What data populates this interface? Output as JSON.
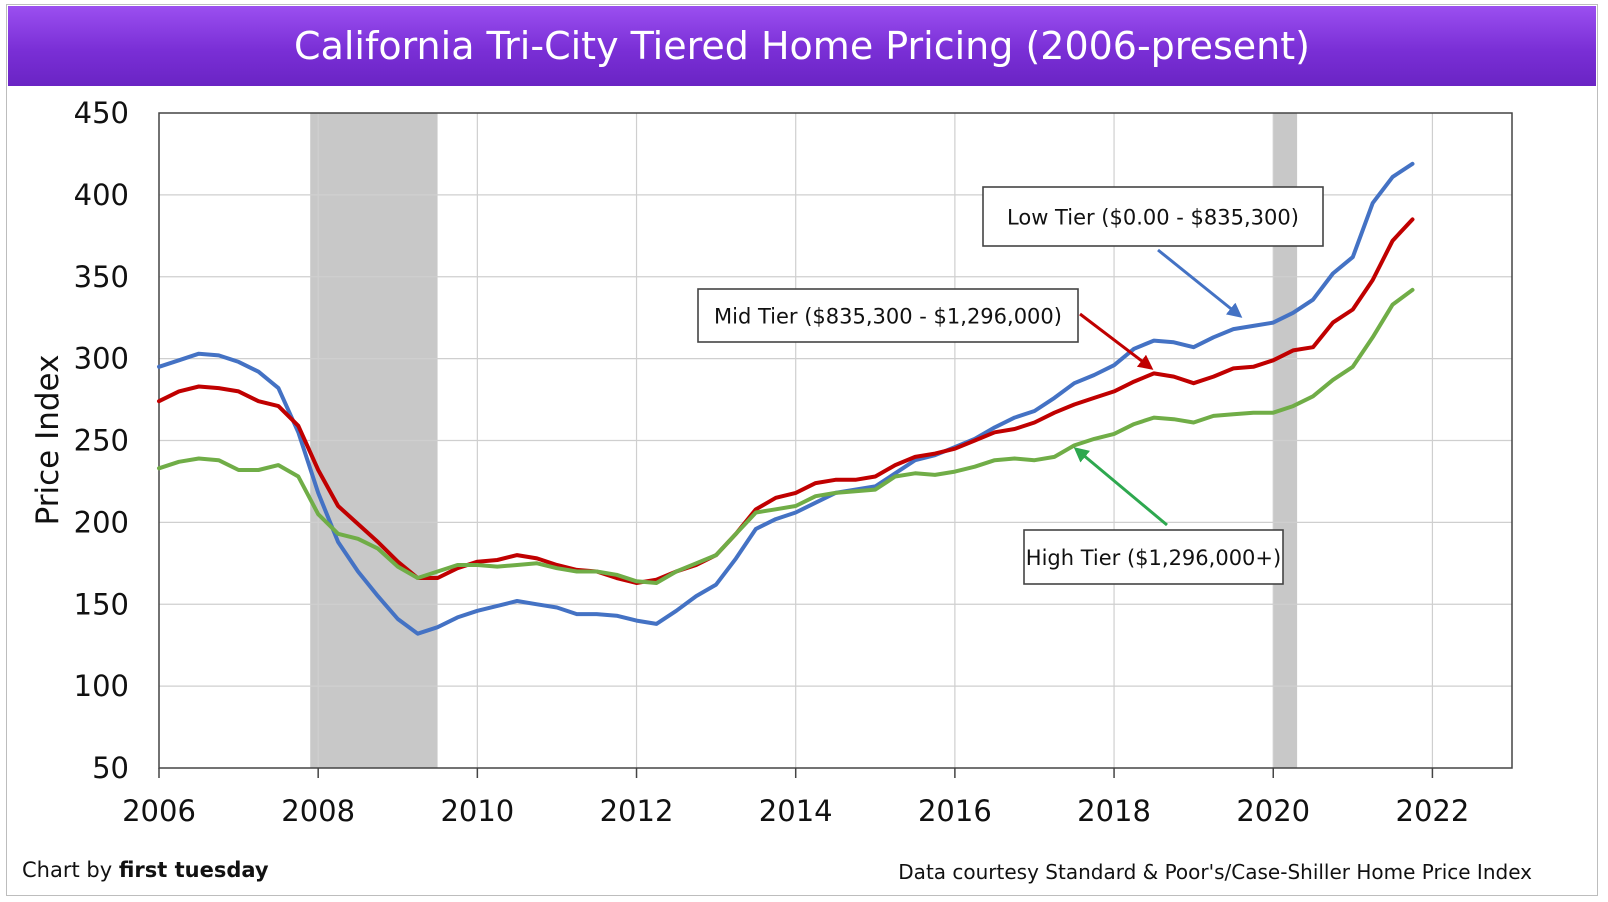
{
  "title": "California Tri-City Tiered Home Pricing (2006-present)",
  "credit_left_prefix": "Chart by ",
  "credit_left_brand": "first tuesday",
  "credit_right": "Data courtesy Standard & Poor's/Case-Shiller Home Price Index",
  "colors": {
    "low": "#4472c4",
    "mid": "#c00000",
    "high": "#70ad47",
    "recession": "#c8c8c8",
    "title_bg": "#7a2fd6",
    "high_arrow": "#2ea84f"
  },
  "chart_data": {
    "type": "line",
    "title": "California Tri-City Tiered Home Pricing (2006-present)",
    "xlabel": "",
    "ylabel": "Price Index",
    "xlim": [
      2006,
      2023
    ],
    "ylim": [
      50,
      450
    ],
    "xticks": [
      2006,
      2008,
      2010,
      2012,
      2014,
      2016,
      2018,
      2020,
      2022
    ],
    "yticks": [
      50,
      100,
      150,
      200,
      250,
      300,
      350,
      400,
      450
    ],
    "grid": true,
    "shaded_periods": [
      [
        2007.9,
        2009.5
      ],
      [
        2020.0,
        2020.3
      ]
    ],
    "series": [
      {
        "key": "low",
        "x": [
          2006.0,
          2006.25,
          2006.5,
          2006.75,
          2007.0,
          2007.25,
          2007.5,
          2007.75,
          2008.0,
          2008.25,
          2008.5,
          2008.75,
          2009.0,
          2009.25,
          2009.5,
          2009.75,
          2010.0,
          2010.25,
          2010.5,
          2010.75,
          2011.0,
          2011.25,
          2011.5,
          2011.75,
          2012.0,
          2012.25,
          2012.5,
          2012.75,
          2013.0,
          2013.25,
          2013.5,
          2013.75,
          2014.0,
          2014.25,
          2014.5,
          2014.75,
          2015.0,
          2015.25,
          2015.5,
          2015.75,
          2016.0,
          2016.25,
          2016.5,
          2016.75,
          2017.0,
          2017.25,
          2017.5,
          2017.75,
          2018.0,
          2018.25,
          2018.5,
          2018.75,
          2019.0,
          2019.25,
          2019.5,
          2019.75,
          2020.0,
          2020.25,
          2020.5,
          2020.75,
          2021.0,
          2021.25,
          2021.5,
          2021.75
        ],
        "values": [
          295,
          299,
          303,
          302,
          298,
          292,
          282,
          255,
          218,
          188,
          170,
          155,
          141,
          132,
          136,
          142,
          146,
          149,
          152,
          150,
          148,
          144,
          144,
          143,
          140,
          138,
          146,
          155,
          162,
          178,
          196,
          202,
          206,
          212,
          218,
          220,
          222,
          230,
          238,
          241,
          246,
          251,
          258,
          264,
          268,
          276,
          285,
          290,
          296,
          306,
          311,
          310,
          307,
          313,
          318,
          320,
          322,
          328,
          336,
          352,
          362,
          395,
          411,
          419
        ]
      },
      {
        "key": "mid",
        "x": [
          2006.0,
          2006.25,
          2006.5,
          2006.75,
          2007.0,
          2007.25,
          2007.5,
          2007.75,
          2008.0,
          2008.25,
          2008.5,
          2008.75,
          2009.0,
          2009.25,
          2009.5,
          2009.75,
          2010.0,
          2010.25,
          2010.5,
          2010.75,
          2011.0,
          2011.25,
          2011.5,
          2011.75,
          2012.0,
          2012.25,
          2012.5,
          2012.75,
          2013.0,
          2013.25,
          2013.5,
          2013.75,
          2014.0,
          2014.25,
          2014.5,
          2014.75,
          2015.0,
          2015.25,
          2015.5,
          2015.75,
          2016.0,
          2016.25,
          2016.5,
          2016.75,
          2017.0,
          2017.25,
          2017.5,
          2017.75,
          2018.0,
          2018.25,
          2018.5,
          2018.75,
          2019.0,
          2019.25,
          2019.5,
          2019.75,
          2020.0,
          2020.25,
          2020.5,
          2020.75,
          2021.0,
          2021.25,
          2021.5,
          2021.75
        ],
        "values": [
          274,
          280,
          283,
          282,
          280,
          274,
          271,
          259,
          232,
          210,
          199,
          188,
          176,
          166,
          166,
          172,
          176,
          177,
          180,
          178,
          174,
          171,
          170,
          166,
          163,
          165,
          170,
          174,
          180,
          193,
          208,
          215,
          218,
          224,
          226,
          226,
          228,
          235,
          240,
          242,
          245,
          250,
          255,
          257,
          261,
          267,
          272,
          276,
          280,
          286,
          291,
          289,
          285,
          289,
          294,
          295,
          299,
          305,
          307,
          322,
          330,
          348,
          372,
          385
        ]
      },
      {
        "key": "high",
        "x": [
          2006.0,
          2006.25,
          2006.5,
          2006.75,
          2007.0,
          2007.25,
          2007.5,
          2007.75,
          2008.0,
          2008.25,
          2008.5,
          2008.75,
          2009.0,
          2009.25,
          2009.5,
          2009.75,
          2010.0,
          2010.25,
          2010.5,
          2010.75,
          2011.0,
          2011.25,
          2011.5,
          2011.75,
          2012.0,
          2012.25,
          2012.5,
          2012.75,
          2013.0,
          2013.25,
          2013.5,
          2013.75,
          2014.0,
          2014.25,
          2014.5,
          2014.75,
          2015.0,
          2015.25,
          2015.5,
          2015.75,
          2016.0,
          2016.25,
          2016.5,
          2016.75,
          2017.0,
          2017.25,
          2017.5,
          2017.75,
          2018.0,
          2018.25,
          2018.5,
          2018.75,
          2019.0,
          2019.25,
          2019.5,
          2019.75,
          2020.0,
          2020.25,
          2020.5,
          2020.75,
          2021.0,
          2021.25,
          2021.5,
          2021.75
        ],
        "values": [
          233,
          237,
          239,
          238,
          232,
          232,
          235,
          228,
          205,
          193,
          190,
          184,
          173,
          166,
          170,
          174,
          174,
          173,
          174,
          175,
          172,
          170,
          170,
          168,
          164,
          163,
          170,
          175,
          180,
          193,
          206,
          208,
          210,
          216,
          218,
          219,
          220,
          228,
          230,
          229,
          231,
          234,
          238,
          239,
          238,
          240,
          247,
          251,
          254,
          260,
          264,
          263,
          261,
          265,
          266,
          267,
          267,
          271,
          277,
          287,
          295,
          313,
          333,
          342
        ]
      }
    ],
    "annotations": [
      {
        "key": "low",
        "text": "Low Tier ($0.00 - $835,300)"
      },
      {
        "key": "mid",
        "text": "Mid Tier ($835,300 - $1,296,000)"
      },
      {
        "key": "high",
        "text": "High Tier ($1,296,000+)"
      }
    ]
  }
}
